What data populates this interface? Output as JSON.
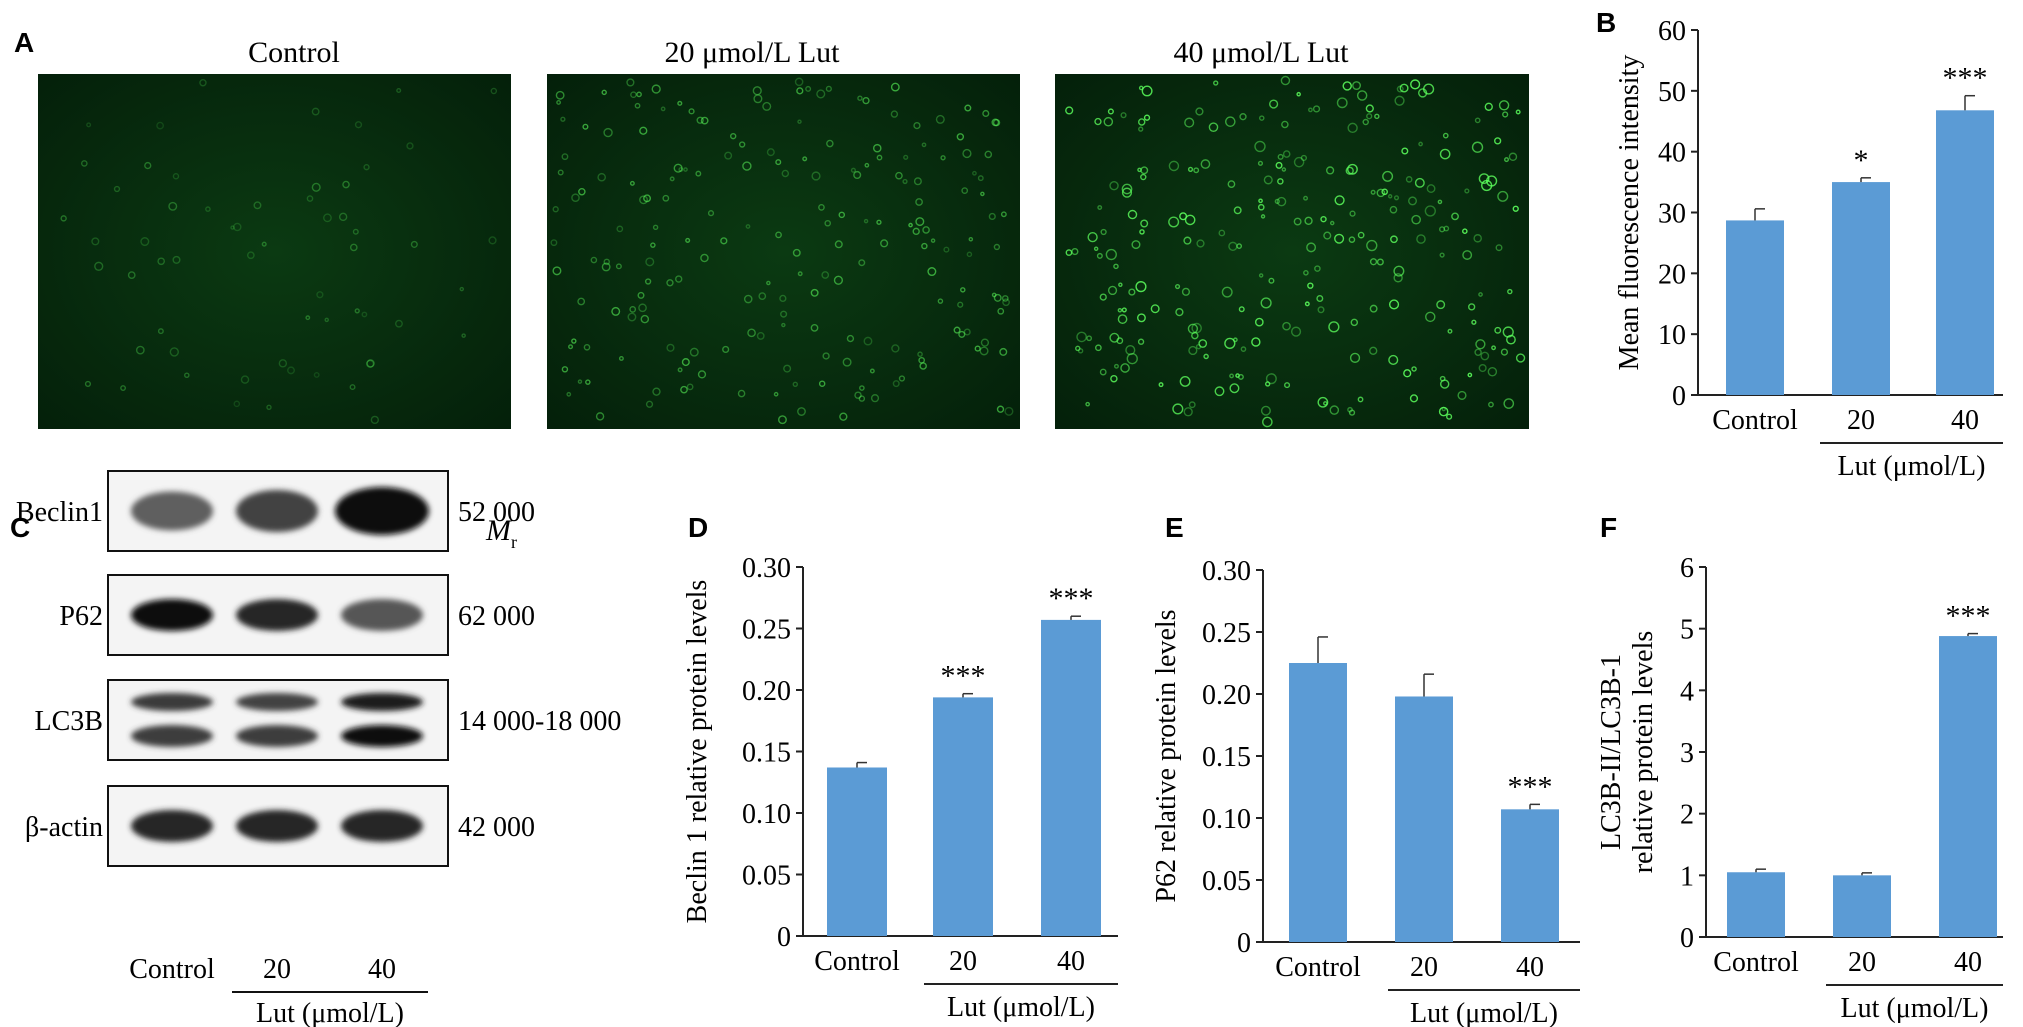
{
  "panel_letters": {
    "a": "A",
    "b": "B",
    "c": "C",
    "d": "D",
    "e": "E",
    "f": "F"
  },
  "micrographs": {
    "titles": [
      "Control",
      "20 μmol/L Lut",
      "40 μmol/L Lut"
    ],
    "color": "#1e8a1e"
  },
  "western_blot": {
    "mr_label": "M",
    "mr_sub": "r",
    "bands": [
      {
        "name": "Beclin1",
        "mw": "52 000",
        "intensity": [
          0.55,
          0.7,
          1.0
        ],
        "double": false
      },
      {
        "name": "P62",
        "mw": "62 000",
        "intensity": [
          1.0,
          0.85,
          0.6
        ],
        "double": false
      },
      {
        "name": "LC3B",
        "mw": "14 000-18 000",
        "intensity": [
          0.75,
          0.7,
          0.9
        ],
        "double": true
      },
      {
        "name": "β-actin",
        "mw": "42 000",
        "intensity": [
          0.85,
          0.85,
          0.85
        ],
        "double": false
      }
    ],
    "lanes": [
      "Control",
      "20",
      "40"
    ],
    "group_label": "Lut (μmol/L)"
  },
  "chart_data": [
    {
      "panel": "B",
      "type": "bar",
      "categories": [
        "Control",
        "20",
        "40"
      ],
      "values": [
        28.7,
        35.0,
        46.8
      ],
      "errors": [
        1.9,
        0.7,
        2.4
      ],
      "significance": [
        "",
        "*",
        "***"
      ],
      "ylabel": "Mean fluorescence intensity",
      "group_label": "Lut (μmol/L)",
      "ylim": [
        0,
        60
      ],
      "yticks": [
        0,
        10,
        20,
        30,
        40,
        50,
        60
      ],
      "tick_labels": [
        "0",
        "10",
        "20",
        "30",
        "40",
        "50",
        "60"
      ],
      "bar_color": "#5b9bd5",
      "grid": false
    },
    {
      "panel": "D",
      "type": "bar",
      "categories": [
        "Control",
        "20",
        "40"
      ],
      "values": [
        0.137,
        0.194,
        0.257
      ],
      "errors": [
        0.004,
        0.003,
        0.003
      ],
      "significance": [
        "",
        "***",
        "***"
      ],
      "ylabel": "Beclin 1 relative protein levels",
      "group_label": "Lut (μmol/L)",
      "ylim": [
        0,
        0.3
      ],
      "yticks": [
        0,
        0.05,
        0.1,
        0.15,
        0.2,
        0.25,
        0.3
      ],
      "tick_labels": [
        "0",
        "0.05",
        "0.10",
        "0.15",
        "0.20",
        "0.25",
        "0.30"
      ],
      "bar_color": "#5b9bd5",
      "grid": false
    },
    {
      "panel": "E",
      "type": "bar",
      "categories": [
        "Control",
        "20",
        "40"
      ],
      "values": [
        0.225,
        0.198,
        0.107
      ],
      "errors": [
        0.021,
        0.018,
        0.004
      ],
      "significance": [
        "",
        "",
        "***"
      ],
      "ylabel": "P62 relative protein levels",
      "group_label": "Lut (μmol/L)",
      "ylim": [
        0,
        0.3
      ],
      "yticks": [
        0,
        0.05,
        0.1,
        0.15,
        0.2,
        0.25,
        0.3
      ],
      "tick_labels": [
        "0",
        "0.05",
        "0.10",
        "0.15",
        "0.20",
        "0.25",
        "0.30"
      ],
      "bar_color": "#5b9bd5",
      "grid": false
    },
    {
      "panel": "F",
      "type": "bar",
      "categories": [
        "Control",
        "20",
        "40"
      ],
      "values": [
        1.05,
        1.0,
        4.88
      ],
      "errors": [
        0.05,
        0.04,
        0.04
      ],
      "significance": [
        "",
        "",
        "***"
      ],
      "ylabel": "LC3B-II/LC3B-1",
      "ylabel2": "relative protein levels",
      "group_label": "Lut (μmol/L)",
      "ylim": [
        0,
        6
      ],
      "yticks": [
        0,
        1,
        2,
        3,
        4,
        5,
        6
      ],
      "tick_labels": [
        "0",
        "1",
        "2",
        "3",
        "4",
        "5",
        "6"
      ],
      "bar_color": "#5b9bd5",
      "grid": false
    }
  ]
}
